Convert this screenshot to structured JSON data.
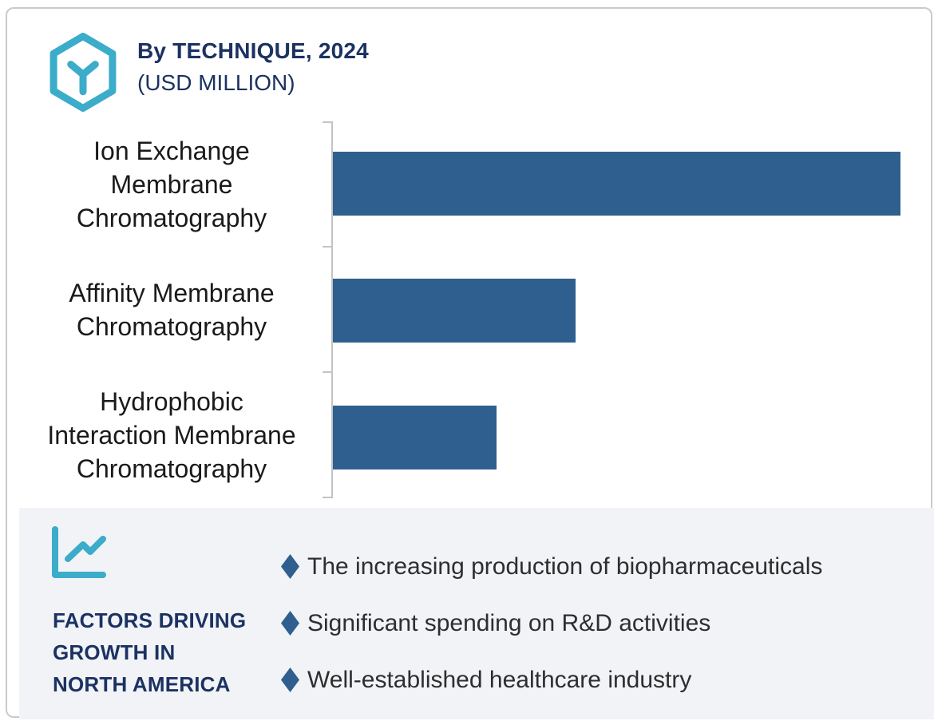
{
  "header": {
    "title": "By TECHNIQUE, 2024",
    "subtitle": "(USD MILLION)"
  },
  "colors": {
    "accent_teal": "#3BACC9",
    "navy": "#1B3262",
    "bar_blue": "#2E5F8E",
    "panel_bg": "#F1F3F7",
    "axis_gray": "#C3C4C6",
    "card_border": "#C9CACC",
    "label_black": "#1A1A1A",
    "bullet_text": "#2E2E2E"
  },
  "icons": {
    "logo": "hexagon-cube-icon",
    "panel": "line-chart-icon",
    "bullet": "diamond-bullet-icon"
  },
  "chart_data": {
    "type": "bar",
    "orientation": "horizontal",
    "title": "By TECHNIQUE, 2024 (USD MILLION)",
    "categories": [
      "Ion Exchange Membrane Chromatography",
      "Affinity Membrane Chromatography",
      "Hydrophobic Interaction Membrane Chromatography"
    ],
    "category_label_lines": [
      [
        "Ion Exchange",
        "Membrane",
        "Chromatography"
      ],
      [
        "Affinity Membrane",
        "Chromatography"
      ],
      [
        "Hydrophobic",
        "Interaction Membrane",
        "Chromatography"
      ]
    ],
    "values_pct_of_max": [
      100,
      42.8,
      28.8
    ],
    "value_labels_shown": false,
    "value_axis_shown": false,
    "bar_color": "#2E5F8E",
    "legend": "none",
    "grid": "off"
  },
  "factors_panel": {
    "heading_lines": [
      "FACTORS DRIVING",
      "GROWTH IN",
      "NORTH AMERICA"
    ],
    "heading": "FACTORS DRIVING GROWTH IN NORTH AMERICA",
    "items": [
      "The increasing production of biopharmaceuticals",
      "Significant spending on R&D activities",
      "Well-established healthcare industry"
    ]
  }
}
